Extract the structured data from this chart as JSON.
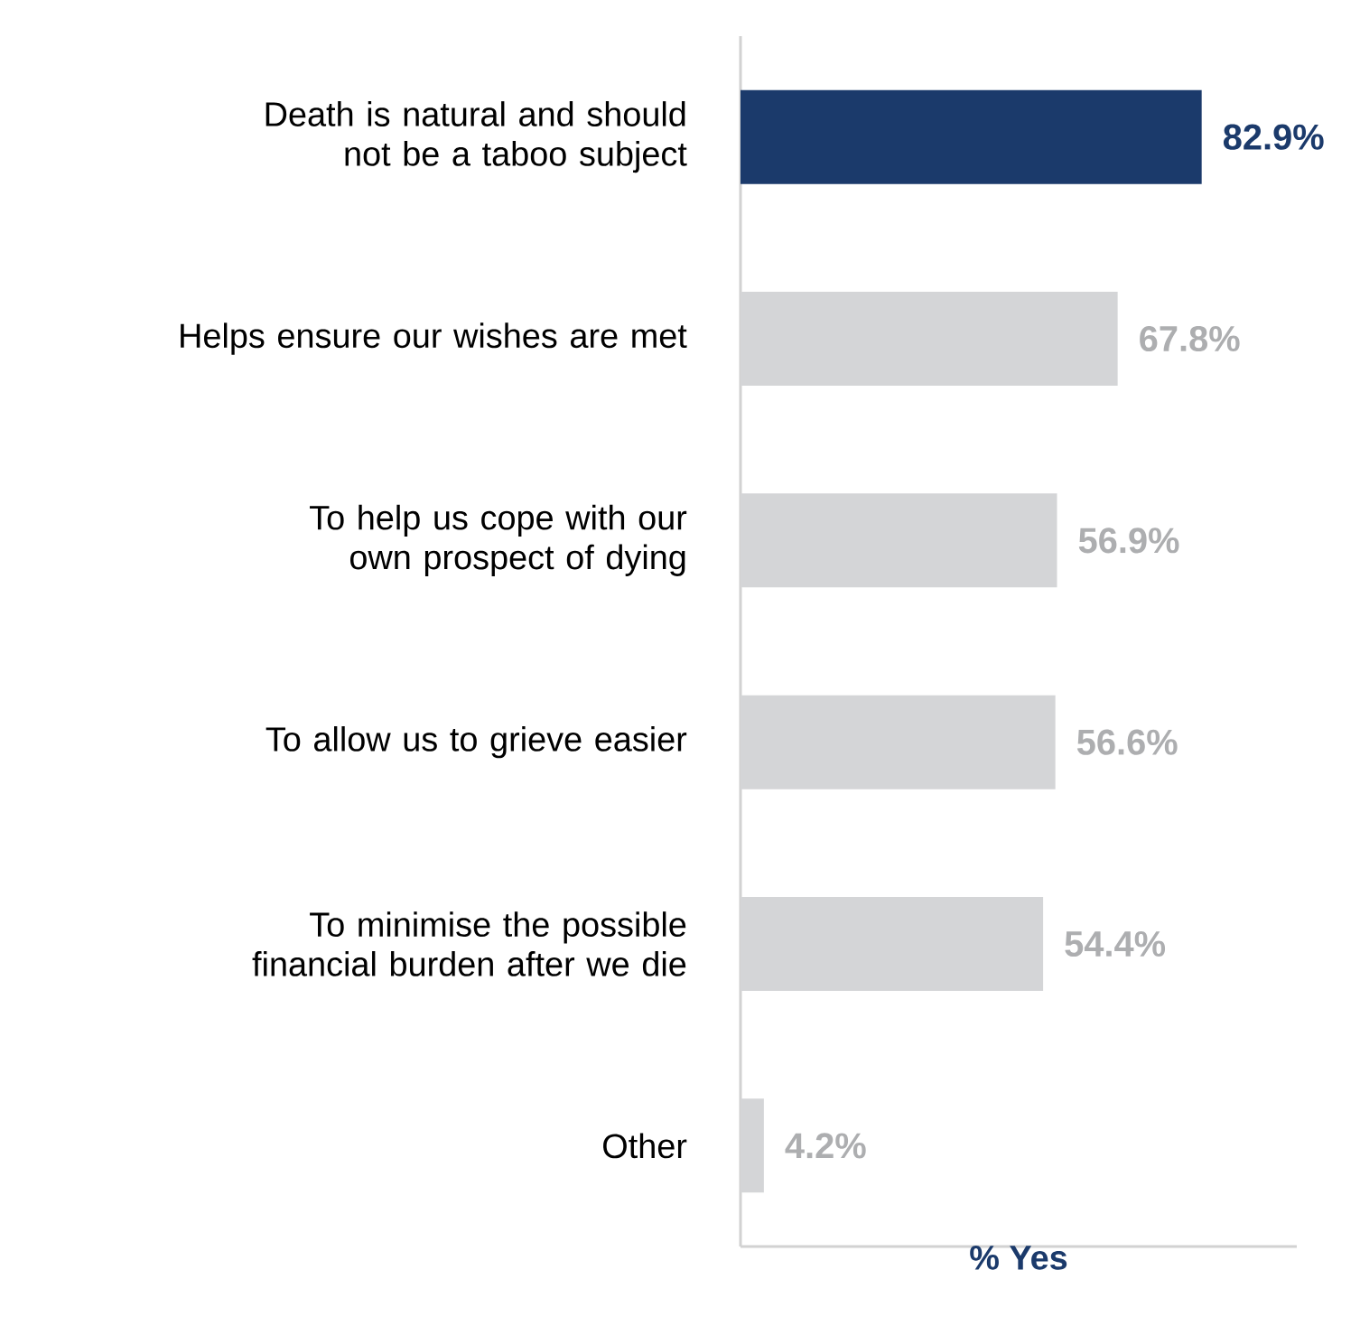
{
  "chart_data": {
    "type": "bar",
    "orientation": "horizontal",
    "xlabel": "% Yes",
    "categories": [
      "Death is natural and should not be a taboo subject",
      "Helps ensure our wishes are met",
      "To help us cope with our own prospect of dying",
      "To allow us to grieve easier",
      "To minimise the possible financial burden after we die",
      "Other"
    ],
    "values": [
      82.9,
      67.8,
      56.9,
      56.6,
      54.4,
      4.2
    ],
    "value_labels": [
      "82.9%",
      "67.8%",
      "56.9%",
      "56.6%",
      "54.4%",
      "4.2%"
    ],
    "colors": [
      "#1b3a6b",
      "#d4d5d7",
      "#d4d5d7",
      "#d4d5d7",
      "#d4d5d7",
      "#d4d5d7"
    ],
    "xlim": [
      0,
      100
    ],
    "tick_labels": "y"
  }
}
